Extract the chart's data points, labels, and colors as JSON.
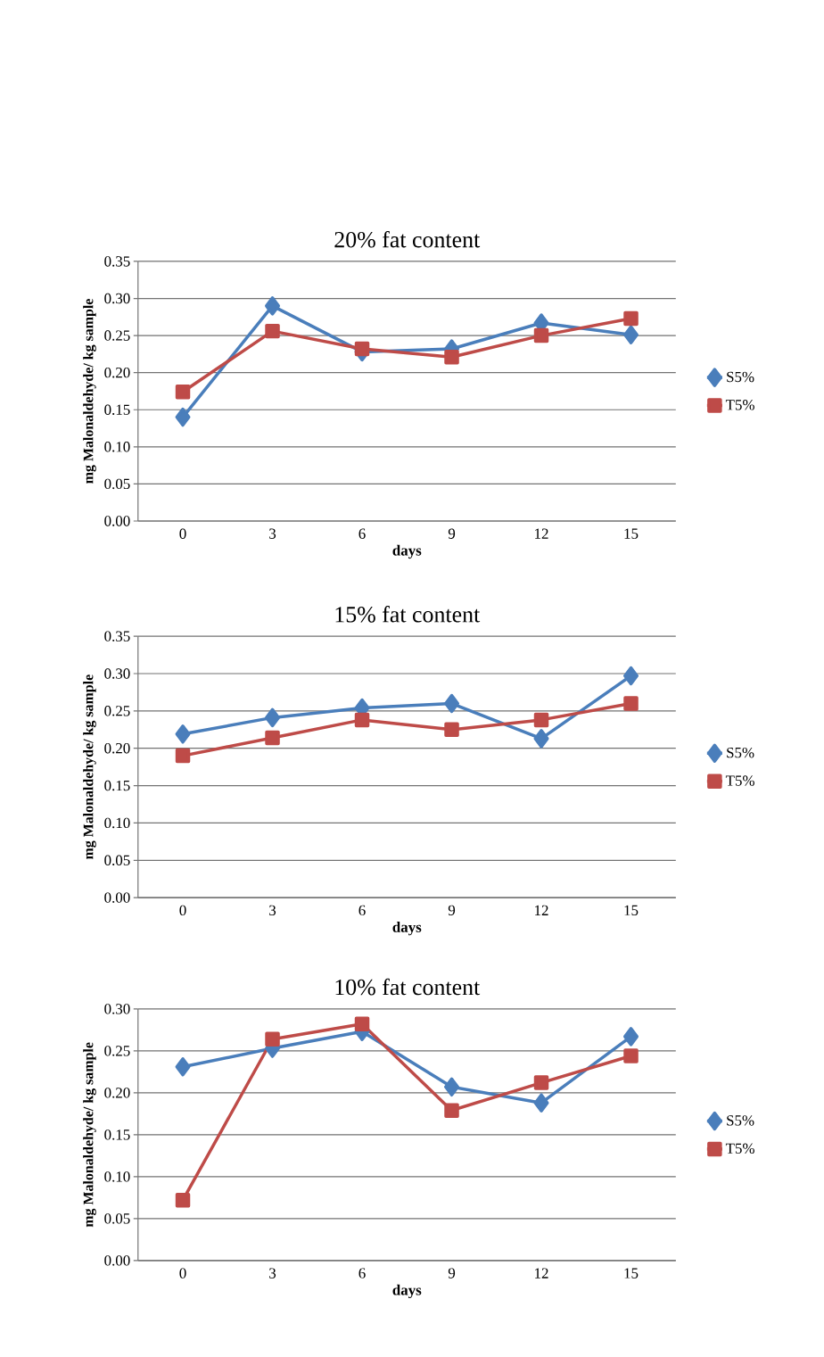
{
  "chart_data": [
    {
      "type": "line",
      "title": "20% fat content",
      "xlabel": "days",
      "ylabel": "mg  Malonaldehyde/ kg sample",
      "categories": [
        "0",
        "3",
        "6",
        "9",
        "12",
        "15"
      ],
      "ylim": [
        0,
        0.35
      ],
      "yticks": [
        {
          "value": 0,
          "label": "0.00"
        },
        {
          "value": 0.05,
          "label": "0.05"
        },
        {
          "value": 0.1,
          "label": "0.10"
        },
        {
          "value": 0.15,
          "label": "0.15"
        },
        {
          "value": 0.2,
          "label": "0.20"
        },
        {
          "value": 0.25,
          "label": "0.25"
        },
        {
          "value": 0.3,
          "label": "0.30"
        },
        {
          "value": 0.35,
          "label": "0.35"
        }
      ],
      "grid": "y",
      "legend": "right",
      "line_style": "solid",
      "series": [
        {
          "name": "S5%",
          "color": "#4a7ebb",
          "marker": "diamond",
          "values": [
            0.14,
            0.29,
            0.228,
            0.232,
            0.267,
            0.251
          ]
        },
        {
          "name": "T5%",
          "color": "#be4b48",
          "marker": "square",
          "values": [
            0.174,
            0.256,
            0.232,
            0.221,
            0.25,
            0.273
          ]
        }
      ]
    },
    {
      "type": "line",
      "title": "15% fat content",
      "xlabel": "days",
      "ylabel": "mg  Malonaldehyde/ kg sample",
      "categories": [
        "0",
        "3",
        "6",
        "9",
        "12",
        "15"
      ],
      "ylim": [
        0,
        0.35
      ],
      "yticks": [
        {
          "value": 0,
          "label": "0.00"
        },
        {
          "value": 0.05,
          "label": "0.05"
        },
        {
          "value": 0.1,
          "label": "0.10"
        },
        {
          "value": 0.15,
          "label": "0.15"
        },
        {
          "value": 0.2,
          "label": "0.20"
        },
        {
          "value": 0.25,
          "label": "0.25"
        },
        {
          "value": 0.3,
          "label": "0.30"
        },
        {
          "value": 0.35,
          "label": "0.35"
        }
      ],
      "grid": "y",
      "legend": "right",
      "line_style": "solid",
      "series": [
        {
          "name": "S5%",
          "color": "#4a7ebb",
          "marker": "diamond",
          "values": [
            0.219,
            0.241,
            0.254,
            0.26,
            0.213,
            0.297
          ]
        },
        {
          "name": "T5%",
          "color": "#be4b48",
          "marker": "square",
          "values": [
            0.19,
            0.214,
            0.238,
            0.225,
            0.238,
            0.26
          ]
        }
      ]
    },
    {
      "type": "line",
      "title": "10% fat content",
      "xlabel": "days",
      "ylabel": "mg  Malonaldehyde/ kg sample",
      "categories": [
        "0",
        "3",
        "6",
        "9",
        "12",
        "15"
      ],
      "ylim": [
        0,
        0.3
      ],
      "yticks": [
        {
          "value": 0,
          "label": "0.00"
        },
        {
          "value": 0.05,
          "label": "0.05"
        },
        {
          "value": 0.1,
          "label": "0.10"
        },
        {
          "value": 0.15,
          "label": "0.15"
        },
        {
          "value": 0.2,
          "label": "0.20"
        },
        {
          "value": 0.25,
          "label": "0.25"
        },
        {
          "value": 0.3,
          "label": "0.30"
        }
      ],
      "grid": "y",
      "legend": "right",
      "line_style": "solid",
      "series": [
        {
          "name": "S5%",
          "color": "#4a7ebb",
          "marker": "diamond",
          "values": [
            0.231,
            0.253,
            0.273,
            0.207,
            0.188,
            0.267
          ]
        },
        {
          "name": "T5%",
          "color": "#be4b48",
          "marker": "square",
          "values": [
            0.072,
            0.264,
            0.282,
            0.179,
            0.212,
            0.244
          ]
        }
      ]
    }
  ]
}
